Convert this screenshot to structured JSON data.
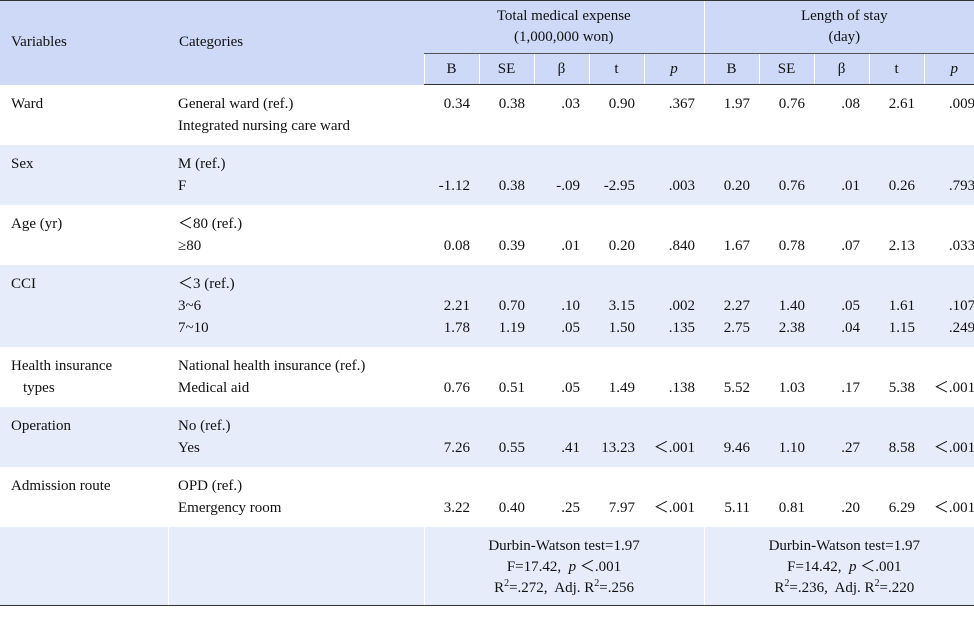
{
  "header": {
    "variables": "Variables",
    "categories": "Categories",
    "group1_line1": "Total medical expense",
    "group1_line2": "(1,000,000 won)",
    "group2_line1": "Length of stay",
    "group2_line2": "(day)",
    "cols": [
      "B",
      "SE",
      "β",
      "t",
      "p"
    ]
  },
  "rows": [
    {
      "variable": [
        "Ward"
      ],
      "categories": [
        "General ward (ref.)",
        "Integrated nursing care ward"
      ],
      "offset": 0,
      "band": false,
      "values": [
        [
          "0.34",
          "0.38",
          ".03",
          "0.90",
          ".367",
          "1.97",
          "0.76",
          ".08",
          "2.61",
          ".009"
        ]
      ]
    },
    {
      "variable": [
        "Sex"
      ],
      "categories": [
        "M (ref.)",
        "F"
      ],
      "offset": 1,
      "band": true,
      "values": [
        [
          "-1.12",
          "0.38",
          "-.09",
          "-2.95",
          ".003",
          "0.20",
          "0.76",
          ".01",
          "0.26",
          ".793"
        ]
      ]
    },
    {
      "variable": [
        "Age (yr)"
      ],
      "categories": [
        "＜80 (ref.)",
        "≥80"
      ],
      "offset": 1,
      "band": false,
      "values": [
        [
          "0.08",
          "0.39",
          ".01",
          "0.20",
          ".840",
          "1.67",
          "0.78",
          ".07",
          "2.13",
          ".033"
        ]
      ]
    },
    {
      "variable": [
        "CCI"
      ],
      "categories": [
        "＜3 (ref.)",
        "3~6",
        "7~10"
      ],
      "offset": 1,
      "band": true,
      "values": [
        [
          "2.21",
          "0.70",
          ".10",
          "3.15",
          ".002",
          "2.27",
          "1.40",
          ".05",
          "1.61",
          ".107"
        ],
        [
          "1.78",
          "1.19",
          ".05",
          "1.50",
          ".135",
          "2.75",
          "2.38",
          ".04",
          "1.15",
          ".249"
        ]
      ]
    },
    {
      "variable": [
        "Health insurance",
        "types"
      ],
      "categories": [
        "National health insurance (ref.)",
        "Medical aid"
      ],
      "offset": 1,
      "band": false,
      "values": [
        [
          "0.76",
          "0.51",
          ".05",
          "1.49",
          ".138",
          "5.52",
          "1.03",
          ".17",
          "5.38",
          "＜.001"
        ]
      ]
    },
    {
      "variable": [
        "Operation"
      ],
      "categories": [
        "No (ref.)",
        "Yes"
      ],
      "offset": 1,
      "band": true,
      "values": [
        [
          "7.26",
          "0.55",
          ".41",
          "13.23",
          "＜.001",
          "9.46",
          "1.10",
          ".27",
          "8.58",
          "＜.001"
        ]
      ]
    },
    {
      "variable": [
        "Admission route"
      ],
      "categories": [
        "OPD (ref.)",
        "Emergency room"
      ],
      "offset": 1,
      "band": false,
      "values": [
        [
          "3.22",
          "0.40",
          ".25",
          "7.97",
          "＜.001",
          "5.11",
          "0.81",
          ".20",
          "6.29",
          "＜.001"
        ]
      ]
    }
  ],
  "footer": {
    "model1": {
      "dw": "Durbin-Watson test=1.97",
      "f": "F=17.42,",
      "p_label": "p",
      "p_val": "＜.001",
      "r2_prefix": "R",
      "r2_val": "=.272,",
      "adj_prefix": "Adj. R",
      "adj_val": "=.256",
      "sup": "2"
    },
    "model2": {
      "dw": "Durbin-Watson test=1.97",
      "f": "F=14.42,",
      "p_label": "p",
      "p_val": "＜.001",
      "r2_prefix": "R",
      "r2_val": "=.236,",
      "adj_prefix": "Adj. R",
      "adj_val": "=.220",
      "sup": "2"
    }
  }
}
